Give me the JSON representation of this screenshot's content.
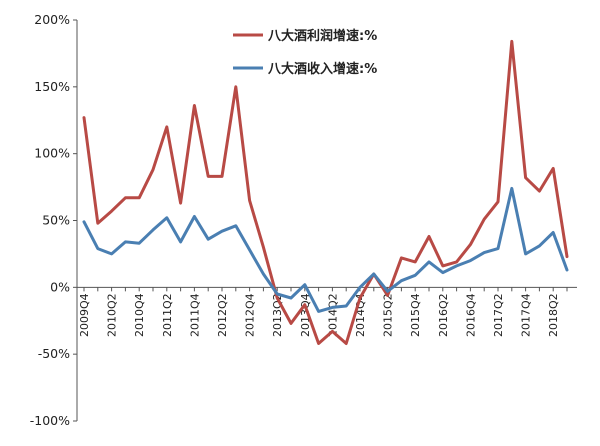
{
  "chart_data": {
    "type": "line",
    "x": [
      "2009Q4",
      "2010Q1",
      "2010Q2",
      "2010Q3",
      "2010Q4",
      "2011Q1",
      "2011Q2",
      "2011Q3",
      "2011Q4",
      "2012Q1",
      "2012Q2",
      "2012Q3",
      "2012Q4",
      "2013Q1",
      "2013Q2",
      "2013Q3",
      "2013Q4",
      "2014Q1",
      "2014Q2",
      "2014Q3",
      "2014Q4",
      "2015Q1",
      "2015Q2",
      "2015Q3",
      "2015Q4",
      "2016Q1",
      "2016Q2",
      "2016Q3",
      "2016Q4",
      "2017Q1",
      "2017Q2",
      "2017Q3",
      "2017Q4",
      "2018Q1",
      "2018Q2",
      "2018Q3"
    ],
    "x_tick_labels": [
      "2009Q4",
      "2010Q2",
      "2010Q4",
      "2011Q2",
      "2011Q4",
      "2012Q2",
      "2012Q4",
      "2013Q2",
      "2013Q4",
      "2014Q2",
      "2014Q4",
      "2015Q2",
      "2015Q4",
      "2016Q2",
      "2016Q4",
      "2017Q2",
      "2017Q4",
      "2018Q2"
    ],
    "y_tick_labels": [
      "200%",
      "150%",
      "100%",
      "50%",
      "0%",
      "-50%",
      "-100%"
    ],
    "ylim": [
      -100,
      200
    ],
    "series": [
      {
        "name": "八大酒利润增速:%",
        "color": "#B84A45",
        "values": [
          127,
          48,
          57,
          67,
          67,
          88,
          120,
          63,
          136,
          83,
          83,
          150,
          65,
          30,
          -8,
          -27,
          -13,
          -42,
          -33,
          -42,
          -8,
          10,
          -6,
          22,
          19,
          38,
          16,
          19,
          32,
          51,
          64,
          184,
          82,
          72,
          89,
          23
        ]
      },
      {
        "name": "八大酒收入增速:%",
        "color": "#4A7FB2",
        "values": [
          49,
          29,
          25,
          34,
          33,
          43,
          52,
          34,
          53,
          36,
          42,
          46,
          28,
          10,
          -5,
          -8,
          2,
          -18,
          -15,
          -14,
          0,
          10,
          -3,
          5,
          9,
          19,
          11,
          16,
          20,
          26,
          29,
          74,
          25,
          31,
          41,
          13
        ]
      }
    ]
  }
}
